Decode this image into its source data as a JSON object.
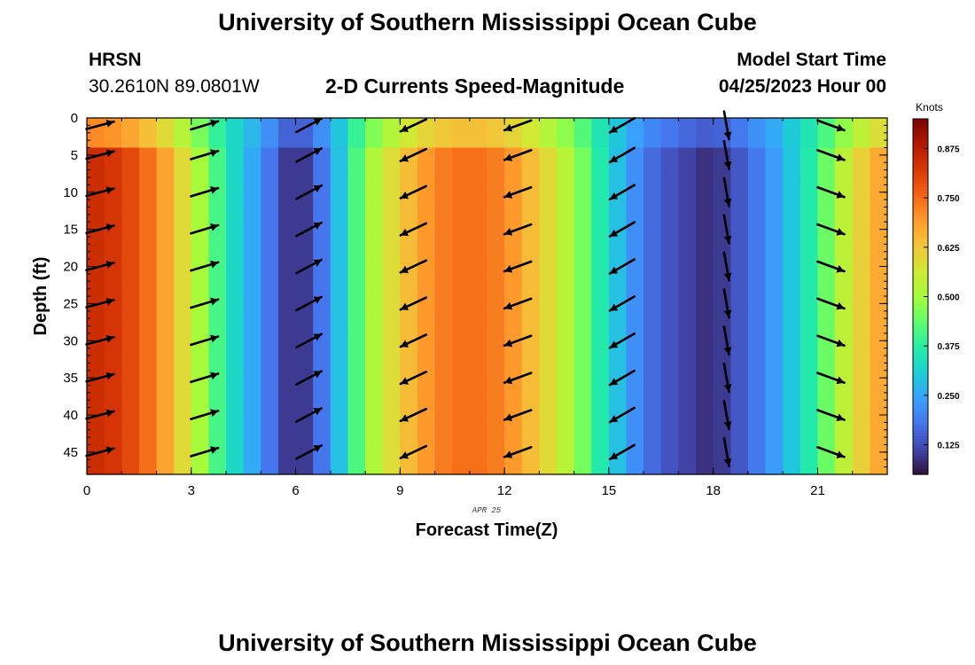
{
  "title": "University of Southern Mississippi Ocean Cube",
  "station": {
    "name": "HRSN",
    "coords": "30.2610N  89.0801W"
  },
  "subtitle": "2-D Currents Speed-Magnitude",
  "model_start": {
    "label": "Model Start Time",
    "value": "04/25/2023 Hour 00"
  },
  "date_note": "APR 25",
  "footer_title": "University of Southern Mississippi Ocean Cube",
  "chart_data": {
    "type": "heatmap",
    "title": "2-D Currents Speed-Magnitude",
    "xlabel": "Forecast Time(Z)",
    "ylabel": "Depth (ft)",
    "xlim": [
      0,
      23
    ],
    "ylim": [
      0,
      48
    ],
    "x_ticks": [
      0,
      3,
      6,
      9,
      12,
      15,
      18,
      21
    ],
    "y_ticks": [
      0,
      5,
      10,
      15,
      20,
      25,
      30,
      35,
      40,
      45
    ],
    "y_inverted": true,
    "colorbar": {
      "label": "Knots",
      "range": [
        0.05,
        0.95
      ],
      "ticks": [
        "0.875",
        "0.750",
        "0.625",
        "0.500",
        "0.375",
        "0.250",
        "0.125"
      ],
      "tick_values": [
        0.875,
        0.75,
        0.625,
        0.5,
        0.375,
        0.25,
        0.125
      ],
      "colors": [
        "#30123b",
        "#4145ab",
        "#4675ed",
        "#39a2fc",
        "#1bcfd4",
        "#24eca6",
        "#61fc6c",
        "#a4fc3b",
        "#d1e834",
        "#f3c63a",
        "#fe9b2d",
        "#f36315",
        "#d93806",
        "#b11901",
        "#7a0402"
      ]
    },
    "speed_by_hour": [
      0.85,
      0.82,
      0.72,
      0.55,
      0.36,
      0.22,
      0.06,
      0.22,
      0.48,
      0.62,
      0.72,
      0.75,
      0.72,
      0.62,
      0.5,
      0.32,
      0.18,
      0.12,
      0.08,
      0.16,
      0.26,
      0.4,
      0.58,
      0.7
    ],
    "vectors": [
      {
        "hour": 0,
        "direction_deg": 75
      },
      {
        "hour": 3,
        "direction_deg": 73
      },
      {
        "hour": 6,
        "direction_deg": 62
      },
      {
        "hour": 9,
        "direction_deg": 245
      },
      {
        "hour": 12,
        "direction_deg": 250
      },
      {
        "hour": 15,
        "direction_deg": 240
      },
      {
        "hour": 18,
        "direction_deg": 170
      },
      {
        "hour": 21,
        "direction_deg": 110
      }
    ]
  }
}
